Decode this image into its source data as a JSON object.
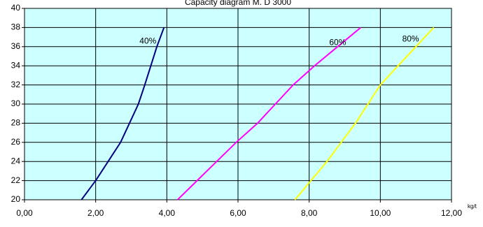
{
  "chart_data": {
    "type": "line",
    "title": "Capacity diagram M. D 3000",
    "x_unit": "kg/t",
    "y": [
      20,
      22,
      24,
      26,
      28,
      30,
      32,
      34,
      36,
      38
    ],
    "series": [
      {
        "name": "40%",
        "color": "#000080",
        "values": [
          1.6,
          2.0,
          2.35,
          2.7,
          2.95,
          3.2,
          3.38,
          3.55,
          3.72,
          3.92
        ]
      },
      {
        "name": "60%",
        "color": "#ff00ff",
        "values": [
          4.3,
          4.85,
          5.4,
          5.95,
          6.55,
          7.05,
          7.55,
          8.15,
          8.8,
          9.45
        ]
      },
      {
        "name": "80%",
        "color": "#ffff00",
        "values": [
          7.6,
          8.05,
          8.5,
          8.9,
          9.3,
          9.65,
          10.0,
          10.5,
          11.0,
          11.5
        ]
      }
    ],
    "xlim": [
      0,
      12
    ],
    "xticks": [
      {
        "value": 0,
        "label": "0,00"
      },
      {
        "value": 2,
        "label": "2,00"
      },
      {
        "value": 4,
        "label": "4,00"
      },
      {
        "value": 6,
        "label": "6,00"
      },
      {
        "value": 8,
        "label": "8,00"
      },
      {
        "value": 10,
        "label": "10,00"
      },
      {
        "value": 12,
        "label": "12,00"
      }
    ],
    "ylim": [
      20,
      40
    ],
    "yticks": [
      20,
      22,
      24,
      26,
      28,
      30,
      32,
      34,
      36,
      38,
      40
    ],
    "grid": true
  }
}
